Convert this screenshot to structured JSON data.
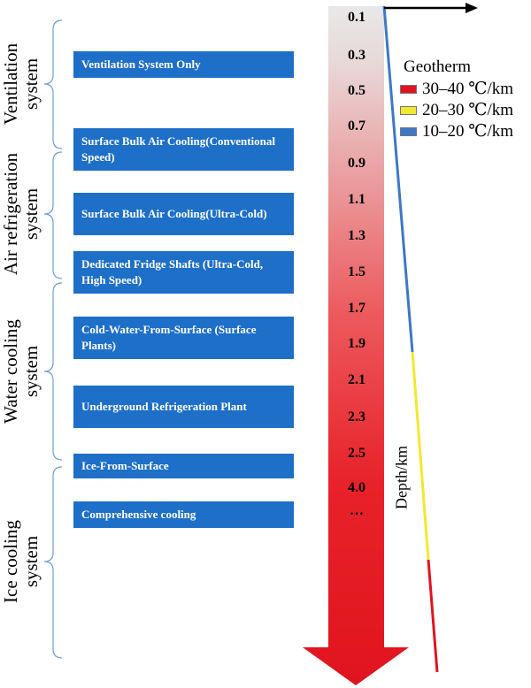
{
  "systems": [
    {
      "label": "Ventilation\nsystem"
    },
    {
      "label": "Air refrigeration\nsystem"
    },
    {
      "label": "Water cooling\nsystem"
    },
    {
      "label": "Ice cooling\nsystem"
    }
  ],
  "measures": [
    {
      "label": "Ventilation System Only"
    },
    {
      "label": "Surface Bulk Air Cooling(Conventional Speed)"
    },
    {
      "label": "Surface Bulk Air Cooling(Ultra-Cold)"
    },
    {
      "label": "Dedicated Fridge Shafts (Ultra-Cold, High Speed)"
    },
    {
      "label": "Cold-Water-From-Surface (Surface Plants)"
    },
    {
      "label": "Underground Refrigeration Plant"
    },
    {
      "label": "Ice-From-Surface"
    },
    {
      "label": "Comprehensive cooling"
    }
  ],
  "depth_ticks": [
    "0.1",
    "0.3",
    "0.5",
    "0.7",
    "0.9",
    "1.1",
    "1.3",
    "1.5",
    "1.7",
    "1.9",
    "2.1",
    "2.3",
    "2.5",
    "4.0",
    "…"
  ],
  "depth_axis_label": "Depth/km",
  "legend": {
    "title": "Geotherm",
    "items": [
      {
        "label": "30–40 ℃/km",
        "color": "#e0141e"
      },
      {
        "label": "20–30 ℃/km",
        "color": "#f2e830"
      },
      {
        "label": "10–20 ℃/km",
        "color": "#3d78c8"
      }
    ]
  },
  "colors": {
    "box": "#1e6fc8",
    "bracket": "#6f9fd0",
    "arrow_top": "#e8e8e8",
    "arrow_bottom": "#e0141e"
  }
}
